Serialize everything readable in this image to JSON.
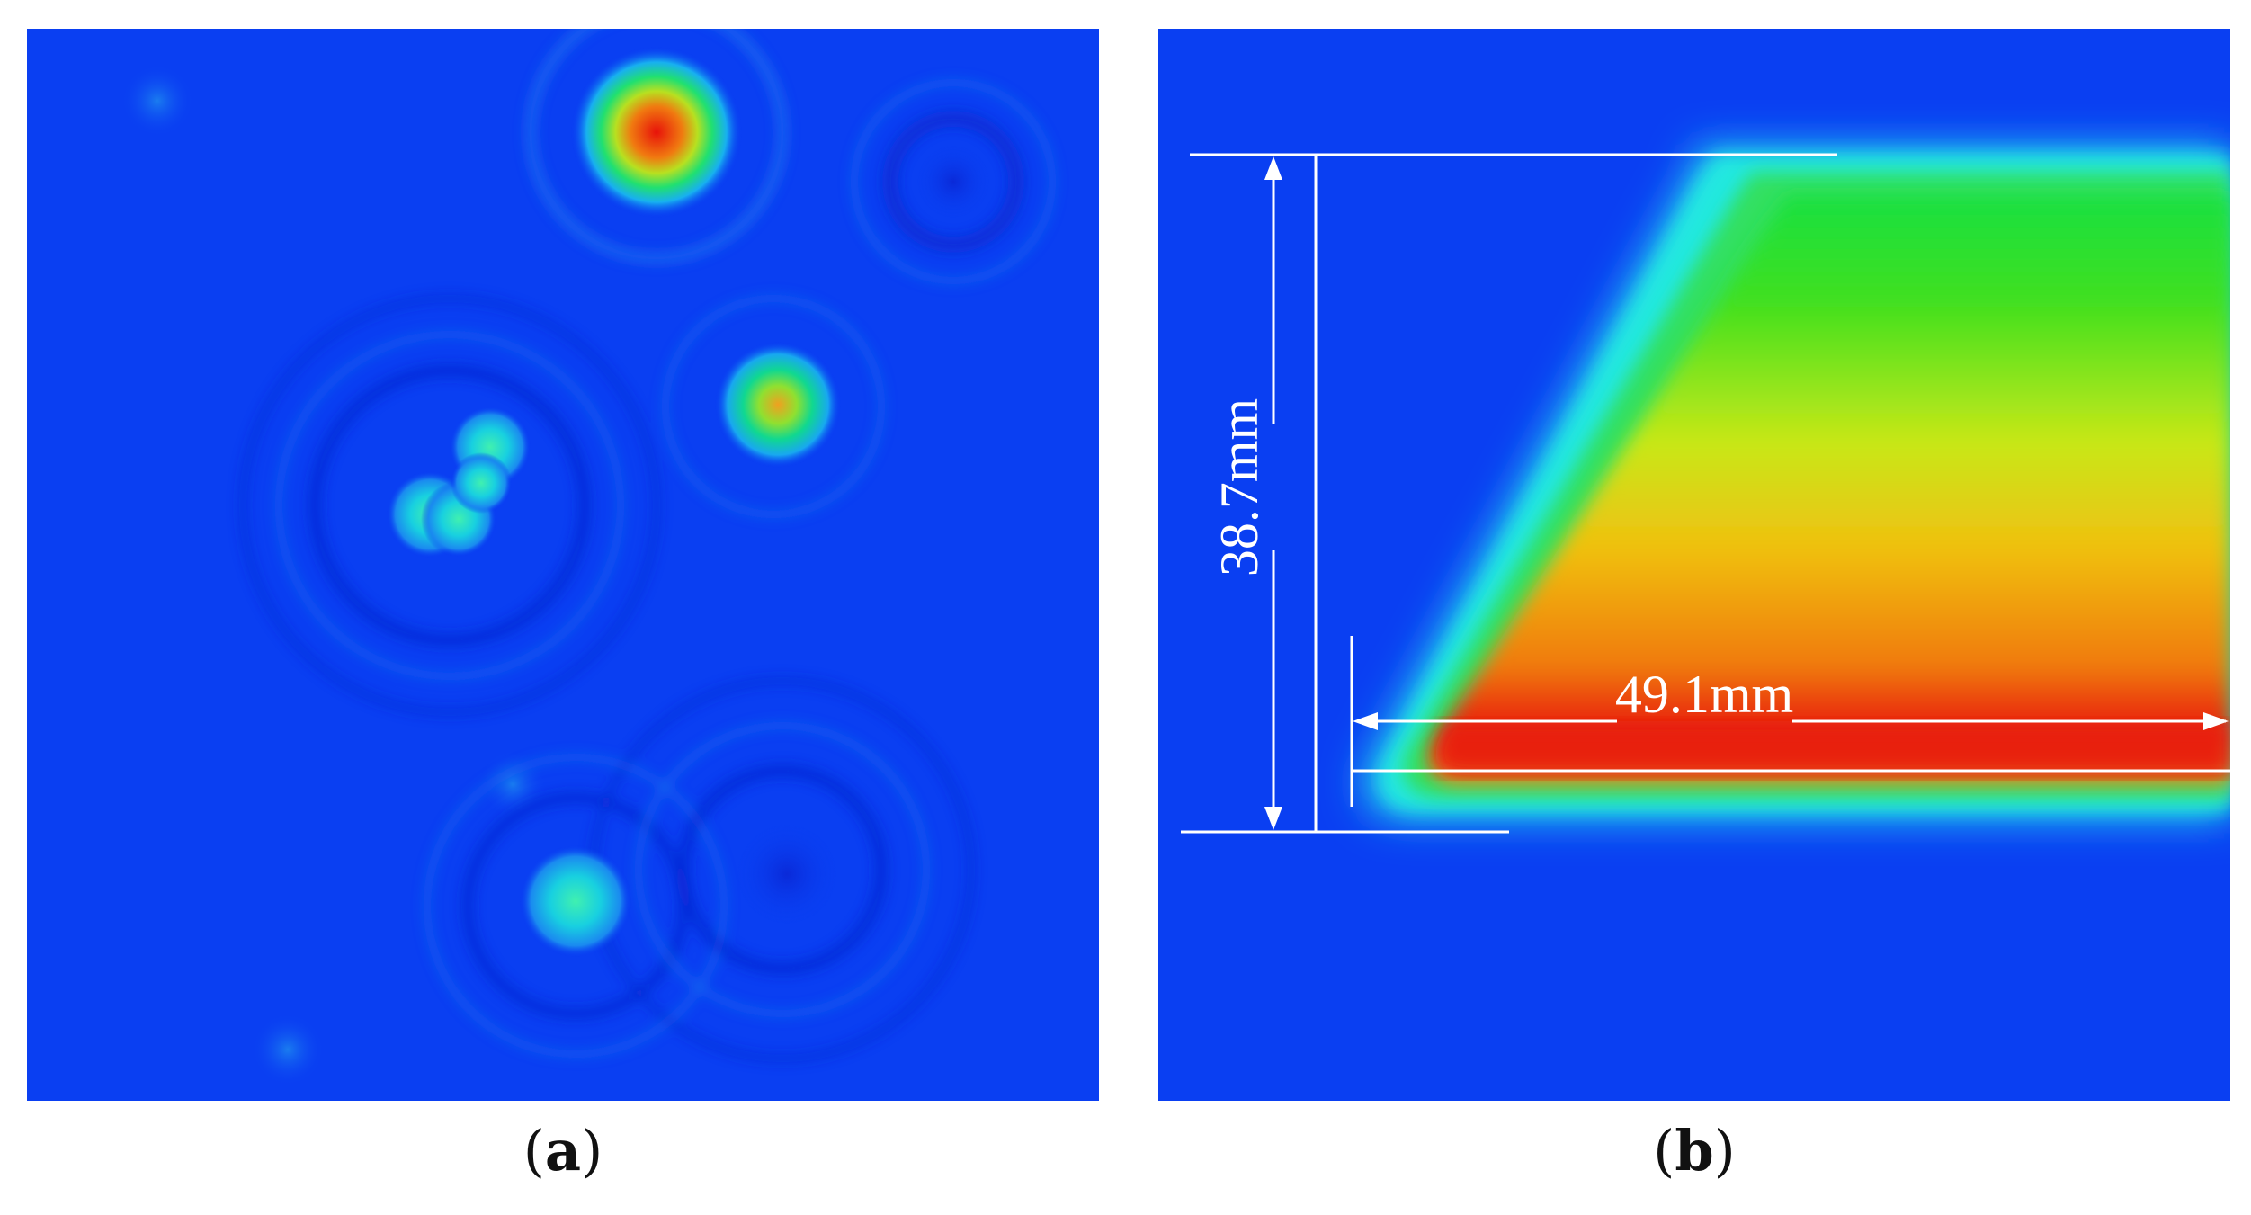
{
  "panel_a": {
    "caption_open": "(",
    "caption_letter": "a",
    "caption_close": ")",
    "background_color": "#0a3ff2"
  },
  "panel_b": {
    "caption_open": "(",
    "caption_letter": "b",
    "caption_close": ")",
    "background_color": "#0a3ff2",
    "height_measure": "38.7mm",
    "width_measure": "49.1mm",
    "annotation_color": "#ffffff"
  }
}
